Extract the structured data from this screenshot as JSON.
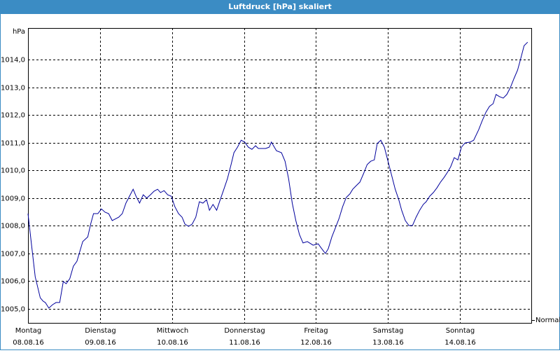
{
  "chart_data": {
    "type": "line",
    "title": "Luftdruck [hPa] skaliert",
    "y_label": "hPa",
    "xlim": [
      0,
      7
    ],
    "xticks": [
      {
        "value": 0,
        "label": "Montag",
        "date": "08.08.16"
      },
      {
        "value": 1,
        "label": "Dienstag",
        "date": "09.08.16"
      },
      {
        "value": 2,
        "label": "Mittwoch",
        "date": "10.08.16"
      },
      {
        "value": 3,
        "label": "Donnerstag",
        "date": "11.08.16"
      },
      {
        "value": 4,
        "label": "Freitag",
        "date": "12.08.16"
      },
      {
        "value": 5,
        "label": "Samstag",
        "date": "13.08.16"
      },
      {
        "value": 6,
        "label": "Sonntag",
        "date": "14.08.16"
      }
    ],
    "ylim": [
      1004.47,
      1015.14
    ],
    "yticks": [
      {
        "value": 1005,
        "label": "1005,0"
      },
      {
        "value": 1006,
        "label": "1006,0"
      },
      {
        "value": 1007,
        "label": "1007,0"
      },
      {
        "value": 1008,
        "label": "1008,0"
      },
      {
        "value": 1009,
        "label": "1009,0"
      },
      {
        "value": 1010,
        "label": "1010,0"
      },
      {
        "value": 1011,
        "label": "1011,0"
      },
      {
        "value": 1012,
        "label": "1012,0"
      },
      {
        "value": 1013,
        "label": "1013,0"
      },
      {
        "value": 1014,
        "label": "1014,0"
      }
    ],
    "grid": true,
    "series": [
      {
        "name": "Normal",
        "color": "#00009c",
        "x": [
          0,
          0.05,
          0.1,
          0.17,
          0.21,
          0.24,
          0.29,
          0.34,
          0.39,
          0.44,
          0.49,
          0.53,
          0.58,
          0.63,
          0.68,
          0.76,
          0.83,
          0.87,
          0.91,
          0.97,
          1.02,
          1.07,
          1.12,
          1.17,
          1.26,
          1.31,
          1.36,
          1.41,
          1.46,
          1.5,
          1.55,
          1.6,
          1.65,
          1.7,
          1.75,
          1.8,
          1.84,
          1.89,
          1.94,
          1.99,
          2.04,
          2.09,
          2.14,
          2.18,
          2.23,
          2.28,
          2.33,
          2.38,
          2.43,
          2.48,
          2.52,
          2.57,
          2.62,
          2.67,
          2.72,
          2.77,
          2.82,
          2.86,
          2.91,
          2.96,
          3.01,
          3.06,
          3.11,
          3.16,
          3.2,
          3.3,
          3.35,
          3.38,
          3.45,
          3.52,
          3.57,
          3.62,
          3.67,
          3.72,
          3.77,
          3.82,
          3.88,
          3.96,
          4.03,
          4.08,
          4.13,
          4.17,
          4.22,
          4.27,
          4.32,
          4.37,
          4.42,
          4.47,
          4.51,
          4.56,
          4.61,
          4.66,
          4.71,
          4.76,
          4.81,
          4.85,
          4.9,
          4.95,
          5.0,
          5.05,
          5.1,
          5.15,
          5.19,
          5.24,
          5.29,
          5.34,
          5.39,
          5.44,
          5.49,
          5.53,
          5.58,
          5.63,
          5.68,
          5.73,
          5.78,
          5.83,
          5.87,
          5.92,
          5.97,
          6.02,
          6.07,
          6.14,
          6.19,
          6.26,
          6.31,
          6.36,
          6.41,
          6.46,
          6.5,
          6.55,
          6.6,
          6.65,
          6.7,
          6.75,
          6.8,
          6.84,
          6.89,
          6.94
        ],
        "values": [
          1008.44,
          1007.3,
          1006.16,
          1005.4,
          1005.28,
          1005.23,
          1005.03,
          1005.15,
          1005.23,
          1005.23,
          1005.99,
          1005.91,
          1006.09,
          1006.54,
          1006.72,
          1007.43,
          1007.6,
          1008.06,
          1008.44,
          1008.44,
          1008.61,
          1008.49,
          1008.44,
          1008.19,
          1008.31,
          1008.44,
          1008.82,
          1009.07,
          1009.32,
          1009.07,
          1008.82,
          1009.12,
          1009.0,
          1009.12,
          1009.25,
          1009.32,
          1009.2,
          1009.27,
          1009.12,
          1009.07,
          1008.69,
          1008.44,
          1008.31,
          1008.06,
          1007.98,
          1008.06,
          1008.31,
          1008.87,
          1008.82,
          1008.94,
          1008.56,
          1008.77,
          1008.56,
          1008.94,
          1009.32,
          1009.7,
          1010.21,
          1010.64,
          1010.84,
          1011.09,
          1011.02,
          1010.84,
          1010.76,
          1010.89,
          1010.79,
          1010.79,
          1010.84,
          1011.02,
          1010.71,
          1010.64,
          1010.33,
          1009.7,
          1008.82,
          1008.19,
          1007.68,
          1007.38,
          1007.43,
          1007.3,
          1007.35,
          1007.17,
          1007.0,
          1007.17,
          1007.6,
          1007.93,
          1008.26,
          1008.69,
          1009.02,
          1009.15,
          1009.32,
          1009.45,
          1009.58,
          1009.88,
          1010.21,
          1010.33,
          1010.38,
          1010.97,
          1011.09,
          1010.84,
          1010.33,
          1009.83,
          1009.32,
          1008.94,
          1008.56,
          1008.19,
          1008.01,
          1008.01,
          1008.31,
          1008.56,
          1008.77,
          1008.87,
          1009.07,
          1009.2,
          1009.37,
          1009.58,
          1009.75,
          1009.95,
          1010.13,
          1010.46,
          1010.38,
          1010.84,
          1010.99,
          1011.02,
          1011.09,
          1011.47,
          1011.8,
          1012.1,
          1012.31,
          1012.41,
          1012.74,
          1012.66,
          1012.61,
          1012.74,
          1012.99,
          1013.32,
          1013.62,
          1014.0,
          1014.5,
          1014.63
        ]
      }
    ]
  }
}
